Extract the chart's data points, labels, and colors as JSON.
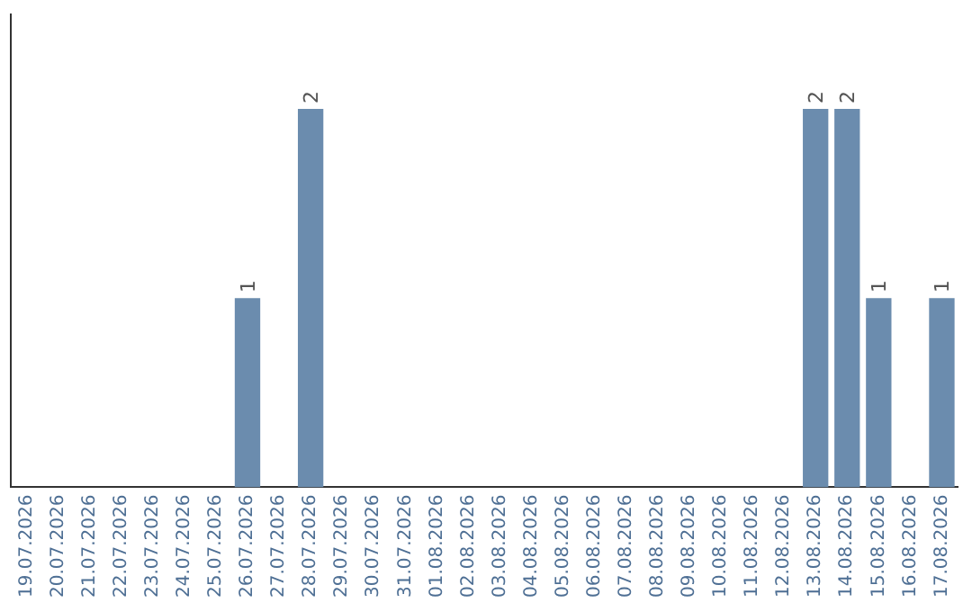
{
  "chart_data": {
    "type": "bar",
    "categories": [
      "19.07.2026",
      "20.07.2026",
      "21.07.2026",
      "22.07.2026",
      "23.07.2026",
      "24.07.2026",
      "25.07.2026",
      "26.07.2026",
      "27.07.2026",
      "28.07.2026",
      "29.07.2026",
      "30.07.2026",
      "31.07.2026",
      "01.08.2026",
      "02.08.2026",
      "03.08.2026",
      "04.08.2026",
      "05.08.2026",
      "06.08.2026",
      "07.08.2026",
      "08.08.2026",
      "09.08.2026",
      "10.08.2026",
      "11.08.2026",
      "12.08.2026",
      "13.08.2026",
      "14.08.2026",
      "15.08.2026",
      "16.08.2026",
      "17.08.2026"
    ],
    "values": [
      0,
      0,
      0,
      0,
      0,
      0,
      0,
      1,
      0,
      2,
      0,
      0,
      0,
      0,
      0,
      0,
      0,
      0,
      0,
      0,
      0,
      0,
      0,
      0,
      0,
      2,
      2,
      1,
      0,
      1
    ],
    "value_labels": [
      null,
      null,
      null,
      null,
      null,
      null,
      null,
      "1",
      null,
      "2",
      null,
      null,
      null,
      null,
      null,
      null,
      null,
      null,
      null,
      null,
      null,
      null,
      null,
      null,
      null,
      "2",
      "2",
      "1",
      null,
      "1"
    ],
    "color": "#6b8cae",
    "grid": false,
    "legend": false,
    "tick_labels": "x"
  }
}
